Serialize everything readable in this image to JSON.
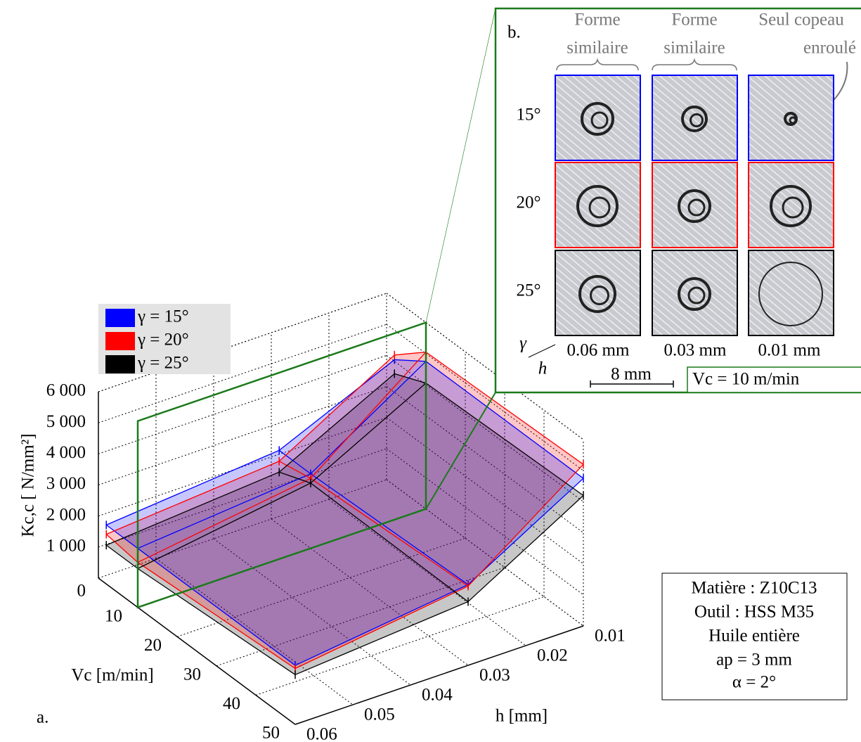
{
  "chart_data": {
    "type": "surface3d",
    "ylabel": "Kc,c [ N/mm²]",
    "xlabel": "h [mm]",
    "vclabel": "Vc [m/min]",
    "panel_label": "a.",
    "h": [
      0.06,
      0.03,
      0.01
    ],
    "Vc": [
      2,
      10,
      50
    ],
    "xlim": [
      0.01,
      0.06
    ],
    "vclim": [
      0,
      50
    ],
    "ylim": [
      0,
      6000
    ],
    "xticks": [
      0.06,
      0.05,
      0.04,
      0.03,
      0.02,
      0.01
    ],
    "vcticks": [
      10,
      20,
      30,
      40,
      50
    ],
    "yticks": [
      0,
      {
        "value": 1000,
        "label": "1 000"
      },
      {
        "value": 2000,
        "label": "2 000"
      },
      {
        "value": 3000,
        "label": "3 000"
      },
      {
        "value": 4000,
        "label": "4 000"
      },
      {
        "value": 5000,
        "label": "5 000"
      },
      {
        "value": 6000,
        "label": "6 000"
      }
    ],
    "grid": true,
    "legend": "top-left",
    "series": [
      {
        "name": "γ = 15°",
        "color": "#0000ff",
        "values": [
          [
            1900,
            2400,
            4050
          ],
          [
            1900,
            2400,
            4750
          ],
          [
            1900,
            2600,
            4750
          ]
        ]
      },
      {
        "name": "γ = 20°",
        "color": "#ff0000",
        "values": [
          [
            1600,
            2050,
            4200
          ],
          [
            1450,
            2250,
            5050
          ],
          [
            1800,
            2550,
            5200
          ]
        ]
      },
      {
        "name": "γ = 25°",
        "color": "#000000",
        "values": [
          [
            1250,
            1700,
            3600
          ],
          [
            1250,
            2100,
            4050
          ],
          [
            1600,
            2050,
            4200
          ]
        ]
      }
    ],
    "info": [
      "Matière : Z10C13",
      "Outil : HSS M35",
      "Huile entière",
      "ap = 3 mm",
      "α = 2°"
    ],
    "inset": {
      "panel_label": "b.",
      "column_notes": [
        [
          "Forme",
          "similaire"
        ],
        [
          "Forme",
          "similaire"
        ],
        [
          "Seul copeau",
          "enroulé"
        ]
      ],
      "rows": [
        "15°",
        "20°",
        "25°"
      ],
      "columns": [
        "0.06 mm",
        "0.03 mm",
        "0.01 mm"
      ],
      "row_axis": "γ",
      "col_axis": "h",
      "scale_bar": "8 mm",
      "condition": "Vc = 10 m/min"
    }
  }
}
